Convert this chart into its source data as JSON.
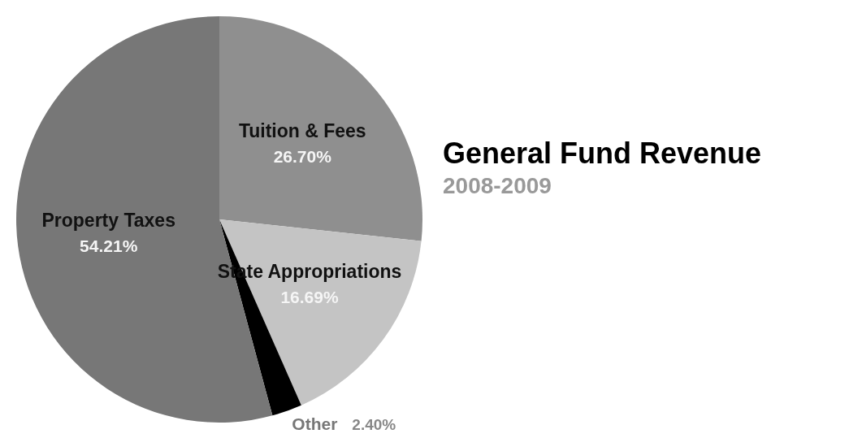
{
  "chart_data": {
    "type": "pie",
    "title": "General Fund Revenue",
    "subtitle": "2008-2009",
    "categories": [
      "Tuition & Fees",
      "State Appropriations",
      "Other",
      "Property Taxes"
    ],
    "values": [
      26.7,
      16.69,
      2.4,
      54.21
    ],
    "value_labels": [
      "26.70%",
      "16.69%",
      "2.40%",
      "54.21%"
    ],
    "colors": [
      "#8f8f8f",
      "#c4c4c4",
      "#000000",
      "#777777"
    ]
  }
}
